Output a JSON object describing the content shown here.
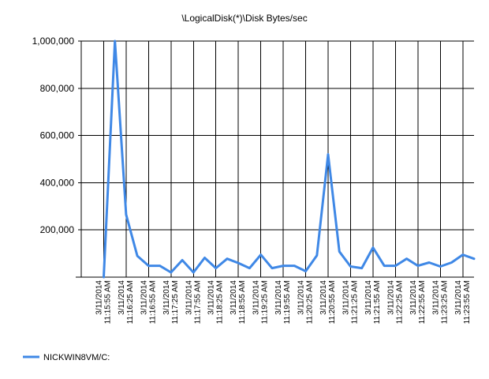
{
  "chart_data": {
    "type": "line",
    "title": "\\LogicalDisk(*)\\Disk Bytes/sec",
    "xlabel": "",
    "ylabel": "",
    "ylim": [
      0,
      1000000
    ],
    "yticks": [
      0,
      200000,
      400000,
      600000,
      800000,
      1000000
    ],
    "ytick_labels": [
      "",
      "200,000",
      "400,000",
      "600,000",
      "800,000",
      "1,000,000"
    ],
    "grid": true,
    "legend_position": "bottom-left",
    "categories": [
      [
        "3/11/2014",
        "11:15:55 AM"
      ],
      [
        "3/11/2014",
        "11:16:25 AM"
      ],
      [
        "3/11/2014",
        "11:16:55 AM"
      ],
      [
        "3/11/2014",
        "11:17:25 AM"
      ],
      [
        "3/11/2014",
        "11:17:55 AM"
      ],
      [
        "3/11/2014",
        "11:18:25 AM"
      ],
      [
        "3/11/2014",
        "11:18:55 AM"
      ],
      [
        "3/11/2014",
        "11:19:25 AM"
      ],
      [
        "3/11/2014",
        "11:19:55 AM"
      ],
      [
        "3/11/2014",
        "11:20:25 AM"
      ],
      [
        "3/11/2014",
        "11:20:55 AM"
      ],
      [
        "3/11/2014",
        "11:21:25 AM"
      ],
      [
        "3/11/2014",
        "11:21:55 AM"
      ],
      [
        "3/11/2014",
        "11:22:25 AM"
      ],
      [
        "3/11/2014",
        "11:22:55 AM"
      ],
      [
        "3/11/2014",
        "11:23:25 AM"
      ],
      [
        "3/11/2014",
        "11:23:55 AM"
      ]
    ],
    "x": [
      0,
      0.5,
      1,
      1.5,
      2,
      2.5,
      3,
      3.5,
      4,
      4.5,
      5,
      5.5,
      6,
      6.5,
      7,
      7.5,
      8,
      8.5,
      9,
      9.5,
      10,
      10.5,
      11,
      11.5,
      12,
      12.5,
      13,
      13.5,
      14,
      14.5,
      15,
      15.5,
      16,
      16.5
    ],
    "series": [
      {
        "name": "NICKWIN8VM/C:",
        "color": "#3f88e6",
        "values": [
          0,
          1000000,
          265000,
          90000,
          48000,
          48000,
          20000,
          72000,
          20000,
          82000,
          38000,
          78000,
          60000,
          38000,
          95000,
          38000,
          48000,
          48000,
          25000,
          92000,
          520000,
          108000,
          45000,
          38000,
          125000,
          48000,
          48000,
          78000,
          48000,
          62000,
          45000,
          62000,
          95000,
          78000
        ]
      }
    ]
  }
}
